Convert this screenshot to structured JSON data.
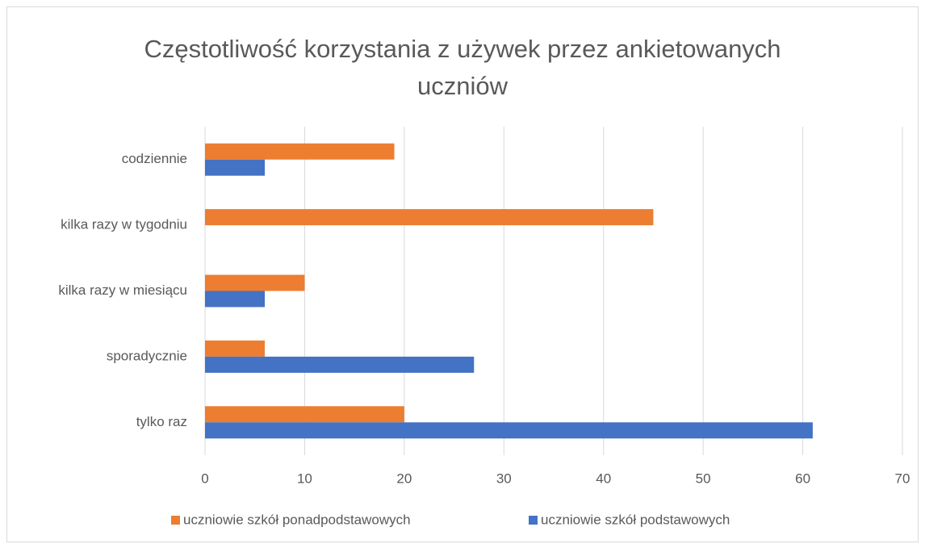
{
  "chart_data": {
    "type": "hbar",
    "title": "Częstotliwość korzystania z używek przez ankietowanych uczniów",
    "categories": [
      "codziennie",
      "kilka razy w tygodniu",
      "kilka razy w miesiącu",
      "sporadycznie",
      "tylko raz"
    ],
    "series": [
      {
        "name": "uczniowie szkół ponadpodstawowych",
        "color": "#ed7d31",
        "values": [
          19,
          45,
          10,
          6,
          20
        ]
      },
      {
        "name": "uczniowie szkół podstawowych",
        "color": "#4472c4",
        "values": [
          6,
          0,
          6,
          27,
          61
        ]
      }
    ],
    "xlim": [
      0,
      70
    ],
    "xticks": [
      0,
      10,
      20,
      30,
      40,
      50,
      60,
      70
    ],
    "grid": true,
    "legend": "bottom"
  }
}
